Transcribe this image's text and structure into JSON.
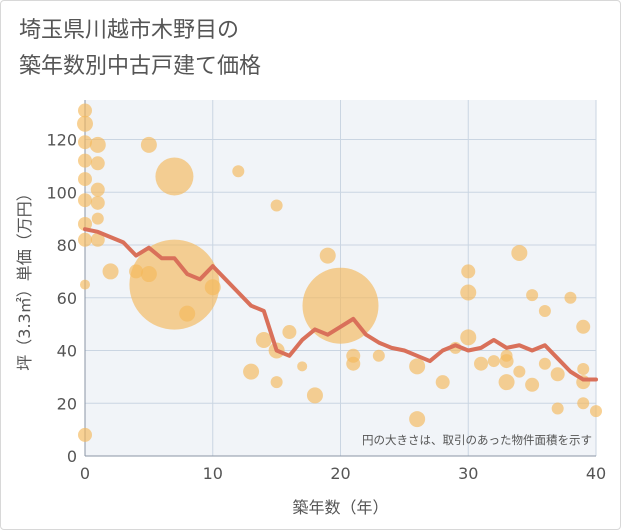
{
  "title": "埼玉県川越市木野目の\n築年数別中古戸建て価格",
  "chart_data": {
    "type": "scatter",
    "title": "埼玉県川越市木野目の 築年数別中古戸建て価格",
    "xlabel": "築年数（年）",
    "ylabel": "坪（3.3㎡）単価（万円）",
    "xlim": [
      0,
      40
    ],
    "ylim": [
      0,
      135
    ],
    "xticks": [
      0,
      10,
      20,
      30,
      40
    ],
    "yticks": [
      0,
      20,
      40,
      60,
      80,
      100,
      120
    ],
    "grid": true,
    "note": "円の大きさは、取引のあった物件面積を示す",
    "colors": {
      "bubble": "#f5b95a",
      "line": "#d9705a"
    },
    "bubbles": [
      {
        "x": 0,
        "y": 8,
        "r": 7
      },
      {
        "x": 0,
        "y": 65,
        "r": 5
      },
      {
        "x": 0,
        "y": 82,
        "r": 7
      },
      {
        "x": 0,
        "y": 88,
        "r": 7
      },
      {
        "x": 0,
        "y": 97,
        "r": 7
      },
      {
        "x": 0,
        "y": 105,
        "r": 7
      },
      {
        "x": 0,
        "y": 112,
        "r": 7
      },
      {
        "x": 0,
        "y": 119,
        "r": 7
      },
      {
        "x": 0,
        "y": 126,
        "r": 8
      },
      {
        "x": 0,
        "y": 131,
        "r": 7
      },
      {
        "x": 1,
        "y": 82,
        "r": 7
      },
      {
        "x": 1,
        "y": 90,
        "r": 6
      },
      {
        "x": 1,
        "y": 96,
        "r": 7
      },
      {
        "x": 1,
        "y": 101,
        "r": 7
      },
      {
        "x": 1,
        "y": 111,
        "r": 7
      },
      {
        "x": 1,
        "y": 118,
        "r": 8
      },
      {
        "x": 2,
        "y": 70,
        "r": 8
      },
      {
        "x": 4,
        "y": 70,
        "r": 7
      },
      {
        "x": 5,
        "y": 69,
        "r": 8
      },
      {
        "x": 5,
        "y": 118,
        "r": 8
      },
      {
        "x": 7,
        "y": 65,
        "r": 45
      },
      {
        "x": 7,
        "y": 106,
        "r": 19
      },
      {
        "x": 8,
        "y": 54,
        "r": 8
      },
      {
        "x": 10,
        "y": 64,
        "r": 8
      },
      {
        "x": 12,
        "y": 108,
        "r": 6
      },
      {
        "x": 13,
        "y": 32,
        "r": 8
      },
      {
        "x": 14,
        "y": 44,
        "r": 8
      },
      {
        "x": 15,
        "y": 28,
        "r": 6
      },
      {
        "x": 15,
        "y": 40,
        "r": 8
      },
      {
        "x": 15,
        "y": 95,
        "r": 6
      },
      {
        "x": 16,
        "y": 47,
        "r": 7
      },
      {
        "x": 17,
        "y": 34,
        "r": 5
      },
      {
        "x": 18,
        "y": 23,
        "r": 8
      },
      {
        "x": 19,
        "y": 76,
        "r": 8
      },
      {
        "x": 20,
        "y": 57,
        "r": 38
      },
      {
        "x": 21,
        "y": 35,
        "r": 7
      },
      {
        "x": 21,
        "y": 38,
        "r": 7
      },
      {
        "x": 23,
        "y": 38,
        "r": 6
      },
      {
        "x": 26,
        "y": 14,
        "r": 8
      },
      {
        "x": 26,
        "y": 34,
        "r": 8
      },
      {
        "x": 28,
        "y": 28,
        "r": 7
      },
      {
        "x": 29,
        "y": 41,
        "r": 6
      },
      {
        "x": 30,
        "y": 45,
        "r": 8
      },
      {
        "x": 30,
        "y": 62,
        "r": 8
      },
      {
        "x": 30,
        "y": 70,
        "r": 7
      },
      {
        "x": 31,
        "y": 35,
        "r": 7
      },
      {
        "x": 32,
        "y": 36,
        "r": 6
      },
      {
        "x": 33,
        "y": 28,
        "r": 8
      },
      {
        "x": 33,
        "y": 36,
        "r": 7
      },
      {
        "x": 33,
        "y": 38,
        "r": 6
      },
      {
        "x": 34,
        "y": 32,
        "r": 6
      },
      {
        "x": 34,
        "y": 77,
        "r": 8
      },
      {
        "x": 35,
        "y": 27,
        "r": 7
      },
      {
        "x": 35,
        "y": 61,
        "r": 6
      },
      {
        "x": 36,
        "y": 35,
        "r": 6
      },
      {
        "x": 36,
        "y": 55,
        "r": 6
      },
      {
        "x": 37,
        "y": 18,
        "r": 6
      },
      {
        "x": 37,
        "y": 31,
        "r": 7
      },
      {
        "x": 38,
        "y": 60,
        "r": 6
      },
      {
        "x": 39,
        "y": 20,
        "r": 6
      },
      {
        "x": 39,
        "y": 28,
        "r": 7
      },
      {
        "x": 39,
        "y": 33,
        "r": 6
      },
      {
        "x": 39,
        "y": 49,
        "r": 7
      },
      {
        "x": 40,
        "y": 17,
        "r": 6
      }
    ],
    "line": {
      "x": [
        0,
        1,
        2,
        3,
        4,
        5,
        6,
        7,
        8,
        9,
        10,
        11,
        12,
        13,
        14,
        15,
        16,
        17,
        18,
        19,
        20,
        21,
        22,
        23,
        24,
        25,
        26,
        27,
        28,
        29,
        30,
        31,
        32,
        33,
        34,
        35,
        36,
        37,
        38,
        39,
        40
      ],
      "y": [
        86,
        85,
        83,
        81,
        76,
        79,
        75,
        75,
        69,
        67,
        72,
        67,
        62,
        57,
        55,
        40,
        38,
        44,
        48,
        46,
        49,
        52,
        46,
        43,
        41,
        40,
        38,
        36,
        40,
        42,
        40,
        41,
        44,
        41,
        42,
        40,
        42,
        37,
        32,
        29,
        29
      ]
    }
  }
}
